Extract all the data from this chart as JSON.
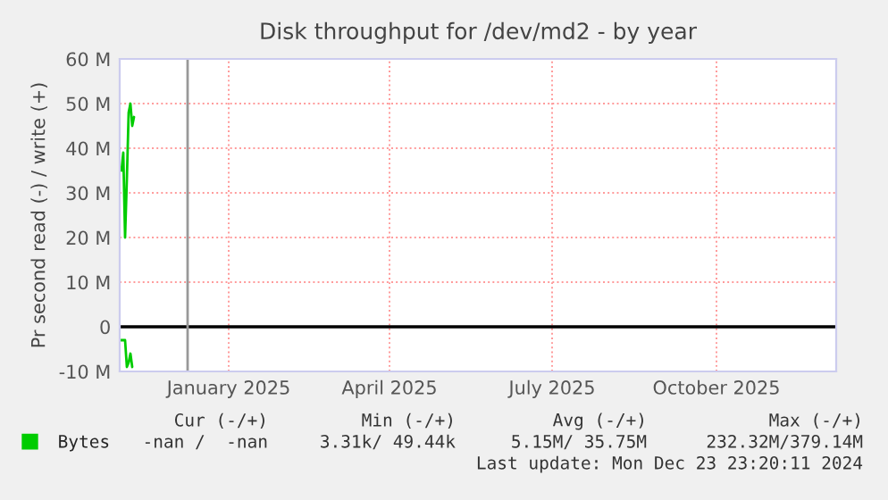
{
  "chart_data": {
    "type": "line",
    "title": "Disk throughput for /dev/md2 - by year",
    "ylabel": "Pr second read (-) / write (+)",
    "series": [
      {
        "name": "Bytes",
        "color": "#00cc00",
        "x": [
          "2024-11-02",
          "2024-11-03",
          "2024-11-04",
          "2024-11-05",
          "2024-11-06",
          "2024-11-07",
          "2024-11-08",
          "2024-11-09"
        ],
        "values": [
          35,
          39,
          20,
          33,
          48,
          50,
          45,
          47
        ]
      },
      {
        "color": "#00cc00",
        "x": [
          "2024-11-01",
          "2024-11-02",
          "2024-11-03",
          "2024-11-04",
          "2024-11-05",
          "2024-11-06",
          "2024-11-07",
          "2024-11-08"
        ],
        "values": [
          -3,
          -3,
          -3,
          -3,
          -9,
          -8,
          -6,
          -9
        ]
      }
    ],
    "xlim": [
      "2024-11-01",
      "2025-12-07"
    ],
    "xticks": [
      {
        "value": "2025-01-01",
        "label": "January 2025"
      },
      {
        "value": "2025-04-01",
        "label": "April 2025"
      },
      {
        "value": "2025-07-01",
        "label": "July 2025"
      },
      {
        "value": "2025-10-01",
        "label": "October 2025"
      }
    ],
    "ylim": [
      -10,
      60
    ],
    "yticks": [
      {
        "value": -10,
        "label": "-10 M"
      },
      {
        "value": 0,
        "label": "0"
      },
      {
        "value": 10,
        "label": "10 M"
      },
      {
        "value": 20,
        "label": "20 M"
      },
      {
        "value": 30,
        "label": "30 M"
      },
      {
        "value": 40,
        "label": "40 M"
      },
      {
        "value": 50,
        "label": "50 M"
      },
      {
        "value": 60,
        "label": "60 M"
      }
    ],
    "ref_lines": [
      {
        "axis": "y",
        "value": 0,
        "color": "#000000"
      },
      {
        "axis": "x",
        "value": "2024-12-09",
        "color": "#999999"
      }
    ],
    "grid": true,
    "legend": "bottom",
    "line_style": "solid",
    "annotations": [
      "Cur (-/+)",
      "Min (-/+)",
      "Avg (-/+)",
      "Max (-/+)",
      "-nan /  -nan",
      "3.31k/ 49.44k",
      "5.15M/ 35.75M",
      "232.32M/379.14M",
      "Last update: Mon Dec 23 23:20:11 2024"
    ]
  }
}
